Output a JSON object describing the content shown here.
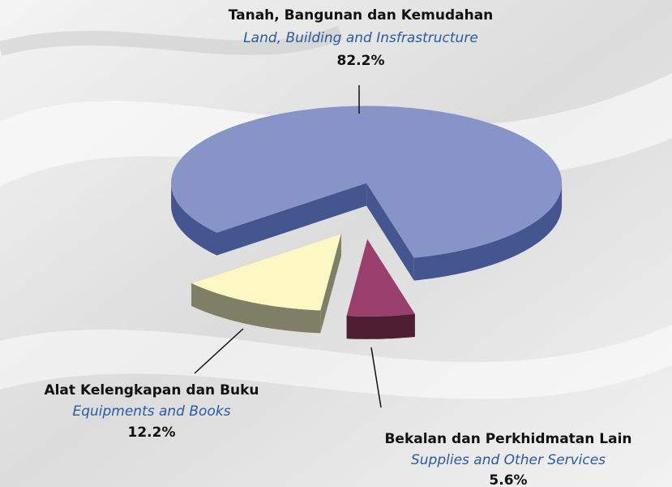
{
  "chart_data": {
    "type": "pie3d",
    "categories": [
      "Tanah, Bangunan dan Kemudahan",
      "Bekalan dan Perkhidmatan Lain",
      "Alat Kelengkapan dan Buku"
    ],
    "categories_english": [
      "Land, Building and Insfrastructure",
      "Supplies and Other Services",
      "Equipments and Books"
    ],
    "values": [
      82.2,
      5.6,
      12.2
    ],
    "value_labels": [
      "82.2%",
      "5.6%",
      "12.2%"
    ],
    "colors": [
      "#8694c8",
      "#9a3f6e",
      "#fdf7c3"
    ],
    "side_colors": [
      "#44558f",
      "#4e1f33",
      "#7e7f66"
    ]
  }
}
